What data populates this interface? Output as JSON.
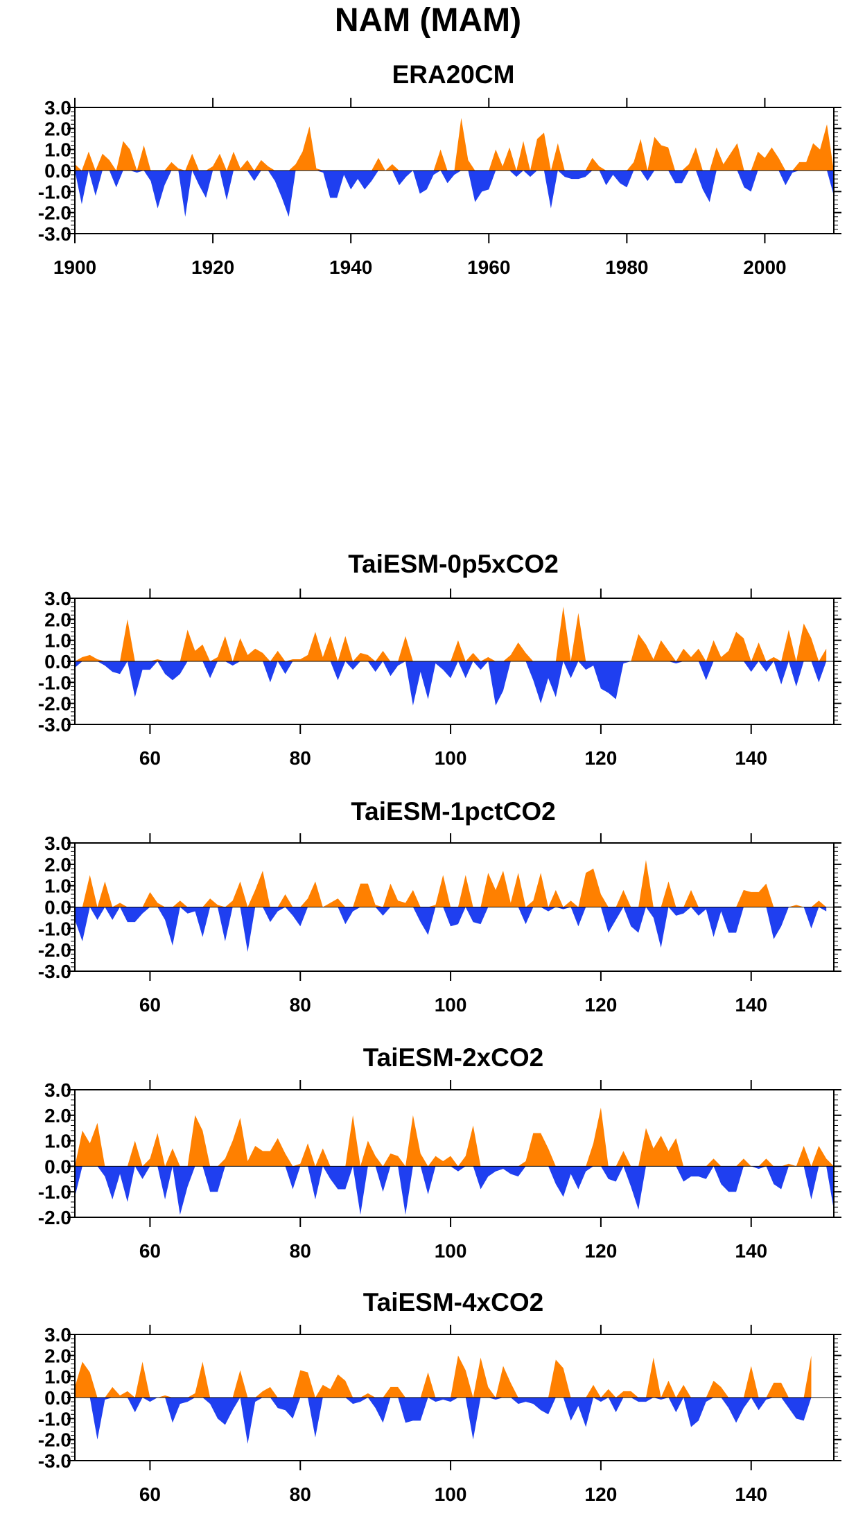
{
  "title": "NAM (MAM)",
  "colors": {
    "positive": "#ff8000",
    "negative": "#1f3ff0",
    "axis": "#000000",
    "background": "#ffffff"
  },
  "chart_data": [
    {
      "type": "area",
      "title": "ERA20CM",
      "xlabel": "",
      "ylabel": "",
      "xlim": [
        1900,
        2010
      ],
      "ylim": [
        -3.0,
        3.0
      ],
      "xticks": [
        "1900",
        "1920",
        "1940",
        "1960",
        "1980",
        "2000"
      ],
      "xtick_values": [
        1900,
        1920,
        1940,
        1960,
        1980,
        2000
      ],
      "yticks": [
        "3.0",
        "2.0",
        "1.0",
        "0.0",
        "-1.0",
        "-2.0",
        "-3.0"
      ],
      "ytick_values": [
        3,
        2,
        1,
        0,
        -1,
        -2,
        -3
      ],
      "x_start": 1900,
      "values": [
        0.3,
        -1.6,
        0.9,
        -1.2,
        0.8,
        0.5,
        -0.8,
        1.4,
        1.0,
        -0.1,
        1.2,
        -0.5,
        -1.8,
        -0.7,
        0.4,
        0.1,
        -2.2,
        0.8,
        -0.7,
        -1.3,
        0.2,
        0.8,
        -1.4,
        0.9,
        0.1,
        0.5,
        -0.5,
        0.5,
        0.2,
        -0.5,
        -1.3,
        -2.2,
        0.3,
        0.9,
        2.1,
        0.1,
        -0.1,
        -1.3,
        -1.3,
        -0.2,
        -0.9,
        -0.4,
        -0.9,
        -0.5,
        0.6,
        0.0,
        0.3,
        -0.7,
        -0.3,
        0.0,
        -1.1,
        -0.9,
        -0.2,
        1.0,
        -0.6,
        -0.2,
        2.5,
        0.5,
        -1.5,
        -1.0,
        -0.9,
        1.0,
        0.2,
        1.1,
        -0.3,
        1.4,
        -0.3,
        1.5,
        1.8,
        -1.8,
        1.3,
        -0.3,
        -0.4,
        -0.4,
        -0.3,
        0.6,
        0.2,
        -0.7,
        -0.2,
        -0.6,
        -0.8,
        0.4,
        1.5,
        -0.5,
        1.6,
        1.2,
        1.1,
        -0.6,
        -0.6,
        0.3,
        1.1,
        -0.9,
        -1.5,
        1.1,
        0.3,
        0.8,
        1.3,
        -0.8,
        -1.0,
        0.9,
        0.6,
        1.1,
        0.6,
        -0.7,
        -0.1,
        0.4,
        0.4,
        1.3,
        1.0,
        2.2,
        -1.2
      ]
    },
    {
      "type": "area",
      "title": "TaiESM-0p5xCO2",
      "xlabel": "",
      "ylabel": "",
      "xlim": [
        50,
        151
      ],
      "ylim": [
        -3.0,
        3.0
      ],
      "xticks": [
        "60",
        "80",
        "100",
        "120",
        "140"
      ],
      "xtick_values": [
        60,
        80,
        100,
        120,
        140
      ],
      "yticks": [
        "3.0",
        "2.0",
        "1.0",
        "0.0",
        "-1.0",
        "-2.0",
        "-3.0"
      ],
      "ytick_values": [
        3,
        2,
        1,
        0,
        -1,
        -2,
        -3
      ],
      "x_start": 50,
      "values": [
        -0.3,
        0.2,
        0.3,
        0.1,
        -0.2,
        -0.5,
        -0.6,
        2.0,
        -1.7,
        -0.4,
        -0.4,
        0.1,
        -0.6,
        -0.9,
        -0.6,
        1.5,
        0.5,
        0.8,
        -0.8,
        0.2,
        1.2,
        -0.2,
        1.1,
        0.3,
        0.6,
        0.4,
        -1.0,
        0.5,
        -0.6,
        0.1,
        0.1,
        0.3,
        1.4,
        0.2,
        1.2,
        -0.9,
        1.2,
        -0.4,
        0.4,
        0.3,
        -0.5,
        0.5,
        -0.7,
        -0.2,
        1.2,
        -2.1,
        -0.5,
        -1.8,
        -0.1,
        -0.4,
        -0.8,
        1.0,
        -0.8,
        0.4,
        -0.4,
        0.2,
        -2.1,
        -1.4,
        0.3,
        0.9,
        0.4,
        -0.9,
        -2.0,
        -0.8,
        -1.7,
        2.6,
        -0.8,
        2.3,
        -0.4,
        -0.2,
        -1.3,
        -1.5,
        -1.8,
        -0.1,
        0.0,
        1.3,
        0.8,
        0.1,
        1.0,
        0.5,
        -0.1,
        0.6,
        0.2,
        0.6,
        -0.9,
        1.0,
        0.2,
        0.5,
        1.4,
        1.1,
        -0.5,
        0.9,
        -0.5,
        0.2,
        -1.1,
        1.5,
        -1.2,
        1.8,
        1.1,
        -1.0,
        0.6
      ]
    },
    {
      "type": "area",
      "title": "TaiESM-1pctCO2",
      "xlabel": "",
      "ylabel": "",
      "xlim": [
        50,
        151
      ],
      "ylim": [
        -3.0,
        3.0
      ],
      "xticks": [
        "60",
        "80",
        "100",
        "120",
        "140"
      ],
      "xtick_values": [
        60,
        80,
        100,
        120,
        140
      ],
      "yticks": [
        "3.0",
        "2.0",
        "1.0",
        "0.0",
        "-1.0",
        "-2.0",
        "-3.0"
      ],
      "ytick_values": [
        3,
        2,
        1,
        0,
        -1,
        -2,
        -3
      ],
      "x_start": 50,
      "values": [
        -0.6,
        -1.6,
        1.5,
        -0.6,
        1.2,
        -0.6,
        0.2,
        -0.7,
        -0.7,
        -0.3,
        0.7,
        0.2,
        -0.6,
        -1.8,
        0.3,
        -0.3,
        -0.2,
        -1.4,
        0.4,
        0.1,
        -1.6,
        0.3,
        1.2,
        -2.1,
        0.8,
        1.7,
        -0.7,
        -0.2,
        0.6,
        -0.4,
        -0.9,
        0.4,
        1.2,
        0.0,
        0.2,
        0.4,
        -0.8,
        -0.2,
        1.1,
        1.1,
        0.1,
        -0.4,
        1.1,
        0.3,
        0.2,
        0.8,
        -0.7,
        -1.3,
        0.1,
        1.5,
        -0.9,
        -0.8,
        1.5,
        -0.7,
        -0.8,
        1.6,
        0.8,
        1.7,
        0.2,
        1.6,
        -0.8,
        0.3,
        1.6,
        -0.2,
        0.8,
        -0.1,
        0.3,
        -0.9,
        1.6,
        1.8,
        0.6,
        -1.2,
        -0.6,
        0.8,
        -0.9,
        -1.2,
        2.2,
        -0.5,
        -1.9,
        1.2,
        -0.4,
        -0.3,
        0.8,
        -0.4,
        -0.1,
        -1.4,
        -0.2,
        -1.2,
        -1.2,
        0.8,
        0.7,
        0.7,
        1.1,
        -1.5,
        -0.9,
        0.0,
        0.1,
        0.0,
        -1.0,
        0.3,
        -0.2
      ]
    },
    {
      "type": "area",
      "title": "TaiESM-2xCO2",
      "xlabel": "",
      "ylabel": "",
      "xlim": [
        50,
        151
      ],
      "ylim": [
        -2.0,
        3.0
      ],
      "xticks": [
        "60",
        "80",
        "100",
        "120",
        "140"
      ],
      "xtick_values": [
        60,
        80,
        100,
        120,
        140
      ],
      "yticks": [
        "3.0",
        "2.0",
        "1.0",
        "0.0",
        "-1.0",
        "-2.0"
      ],
      "ytick_values": [
        3,
        2,
        1,
        0,
        -1,
        -2
      ],
      "x_start": 50,
      "values": [
        -1.2,
        1.4,
        0.9,
        1.7,
        -0.4,
        -1.3,
        -0.3,
        -1.4,
        1.0,
        -0.5,
        0.3,
        1.3,
        -1.3,
        0.7,
        -1.9,
        -0.8,
        2.0,
        1.4,
        -1.0,
        -1.0,
        0.3,
        1.0,
        1.9,
        0.2,
        0.8,
        0.6,
        0.6,
        1.1,
        0.5,
        -0.9,
        0.1,
        0.9,
        -1.3,
        0.7,
        -0.5,
        -0.9,
        -0.9,
        2.0,
        -1.9,
        1.0,
        0.4,
        -1.0,
        0.5,
        0.4,
        -1.9,
        2.0,
        0.5,
        -1.1,
        0.4,
        0.2,
        0.4,
        -0.2,
        0.4,
        1.6,
        -0.9,
        -0.4,
        -0.2,
        -0.1,
        -0.3,
        -0.4,
        0.2,
        1.3,
        1.3,
        0.7,
        -0.7,
        -1.2,
        -0.3,
        -0.9,
        -0.2,
        0.9,
        2.3,
        -0.5,
        -0.6,
        0.6,
        -0.8,
        -1.7,
        1.5,
        0.7,
        1.2,
        0.6,
        1.1,
        -0.6,
        -0.4,
        -0.4,
        -0.5,
        0.3,
        -0.7,
        -1.0,
        -1.0,
        0.3,
        0.0,
        -0.1,
        0.3,
        -0.7,
        -0.9,
        0.1,
        0.0,
        0.8,
        -1.3,
        0.8,
        0.3,
        -1.7
      ]
    },
    {
      "type": "area",
      "title": "TaiESM-4xCO2",
      "xlabel": "",
      "ylabel": "",
      "xlim": [
        50,
        151
      ],
      "ylim": [
        -3.0,
        3.0
      ],
      "xticks": [
        "60",
        "80",
        "100",
        "120",
        "140"
      ],
      "xtick_values": [
        60,
        80,
        100,
        120,
        140
      ],
      "yticks": [
        "3.0",
        "2.0",
        "1.0",
        "0.0",
        "-1.0",
        "-2.0",
        "-3.0"
      ],
      "ytick_values": [
        3,
        2,
        1,
        0,
        -1,
        -2,
        -3
      ],
      "x_start": 50,
      "values": [
        0.5,
        1.7,
        1.2,
        -2.0,
        -0.1,
        0.5,
        0.1,
        0.3,
        -0.7,
        1.7,
        -0.2,
        0.0,
        0.1,
        -1.2,
        -0.3,
        -0.2,
        0.2,
        1.7,
        -0.3,
        -1.0,
        -1.3,
        -0.6,
        1.3,
        -2.2,
        -0.2,
        0.3,
        0.5,
        -0.5,
        -0.6,
        -1.0,
        1.3,
        1.2,
        -1.9,
        0.6,
        0.4,
        1.1,
        0.8,
        -0.3,
        -0.2,
        0.2,
        -0.5,
        -1.2,
        0.5,
        0.5,
        -1.2,
        -1.1,
        -1.1,
        1.2,
        -0.2,
        -0.1,
        -0.2,
        2.0,
        1.3,
        -2.0,
        1.9,
        0.5,
        -0.1,
        1.5,
        0.7,
        -0.3,
        -0.2,
        -0.3,
        -0.6,
        -0.8,
        1.8,
        1.4,
        -1.1,
        -0.4,
        -1.4,
        0.6,
        -0.2,
        0.4,
        -0.7,
        0.3,
        0.3,
        -0.2,
        -0.2,
        1.9,
        -0.1,
        0.8,
        -0.7,
        0.6,
        -1.4,
        -1.1,
        -0.2,
        0.8,
        0.5,
        -0.5,
        -1.2,
        -0.5,
        1.5,
        -0.6,
        -0.1,
        0.7,
        0.7,
        -0.5,
        -1.0,
        -1.1,
        2.0
      ]
    }
  ]
}
